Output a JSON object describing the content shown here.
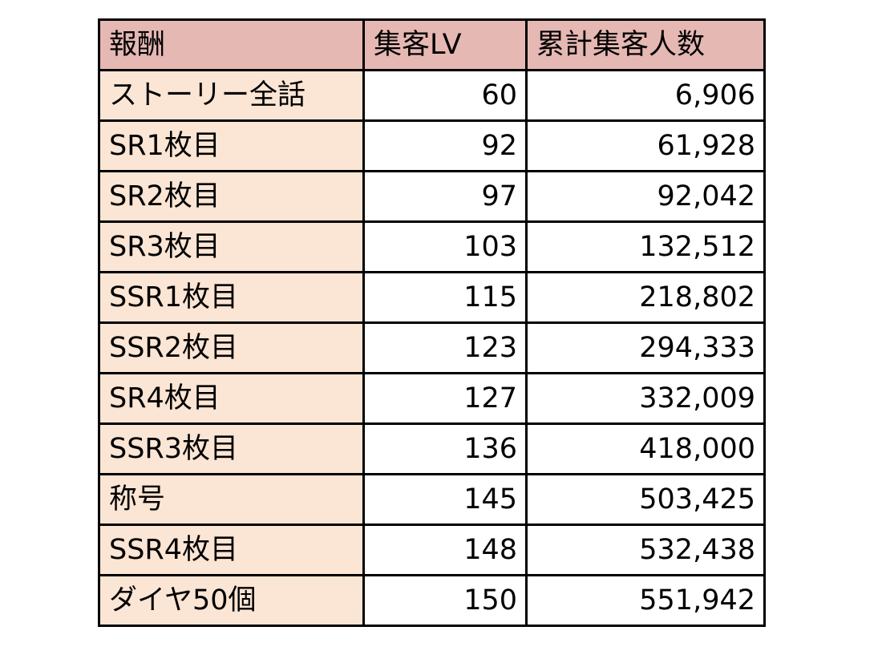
{
  "table": {
    "headers": [
      "報酬",
      "集客LV",
      "累計集客人数"
    ],
    "rows": [
      {
        "reward": "ストーリー全話",
        "level": "60",
        "total": "6,906"
      },
      {
        "reward": "SR1枚目",
        "level": "92",
        "total": "61,928"
      },
      {
        "reward": "SR2枚目",
        "level": "97",
        "total": "92,042"
      },
      {
        "reward": "SR3枚目",
        "level": "103",
        "total": "132,512"
      },
      {
        "reward": "SSR1枚目",
        "level": "115",
        "total": "218,802"
      },
      {
        "reward": "SSR2枚目",
        "level": "123",
        "total": "294,333"
      },
      {
        "reward": "SR4枚目",
        "level": "127",
        "total": "332,009"
      },
      {
        "reward": "SSR3枚目",
        "level": "136",
        "total": "418,000"
      },
      {
        "reward": "称号",
        "level": "145",
        "total": "503,425"
      },
      {
        "reward": "SSR4枚目",
        "level": "148",
        "total": "532,438"
      },
      {
        "reward": "ダイヤ50個",
        "level": "150",
        "total": "551,942"
      }
    ]
  },
  "colors": {
    "header_bg": "#e6b8b3",
    "reward_col_bg": "#fbe5d4",
    "value_bg": "#ffffff",
    "border": "#000000"
  }
}
